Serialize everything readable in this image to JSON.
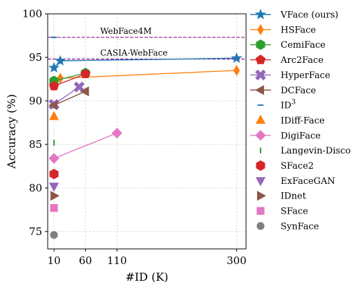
{
  "chart_data": {
    "type": "scatter",
    "xlabel": "#ID (K)",
    "ylabel": "Accuracy (%)",
    "xlim": [
      0,
      315
    ],
    "ylim": [
      73,
      100
    ],
    "xticks": [
      10,
      60,
      110,
      300
    ],
    "yticks": [
      75,
      80,
      85,
      90,
      95,
      100
    ],
    "grid": true,
    "legend_position": "outside-right",
    "reference_lines": [
      {
        "label": "WebFace4M",
        "y": 97.3,
        "color": "#800080"
      },
      {
        "label": "CASIA-WebFace",
        "y": 94.8,
        "color": "#800080"
      }
    ],
    "series": [
      {
        "name": "VFace (ours)",
        "legend_label": "VFace (ours)",
        "marker": "star",
        "color": "#1f77b4",
        "line": true,
        "points": [
          [
            10,
            93.8
          ],
          [
            20,
            94.6
          ],
          [
            300,
            94.9
          ]
        ]
      },
      {
        "name": "HSFace",
        "legend_label": "HSFace",
        "marker": "diamond-thin",
        "color": "#ff7f0e",
        "line": true,
        "points": [
          [
            10,
            92.0
          ],
          [
            20,
            92.6
          ],
          [
            300,
            93.5
          ]
        ]
      },
      {
        "name": "CemiFace",
        "legend_label": "CemiFace",
        "marker": "hexagon",
        "color": "#2ca02c",
        "line": true,
        "points": [
          [
            10,
            92.3
          ],
          [
            60,
            93.2
          ]
        ]
      },
      {
        "name": "Arc2Face",
        "legend_label": "Arc2Face",
        "marker": "pentagon",
        "color": "#d62728",
        "line": true,
        "points": [
          [
            10,
            91.7
          ],
          [
            60,
            93.1
          ]
        ]
      },
      {
        "name": "HyperFace",
        "legend_label": "HyperFace",
        "marker": "x",
        "color": "#9467bd",
        "line": true,
        "points": [
          [
            10,
            89.6
          ],
          [
            50,
            91.6
          ]
        ]
      },
      {
        "name": "DCFace",
        "legend_label": "DCFace",
        "marker": "triangle-left",
        "color": "#8c564b",
        "line": true,
        "points": [
          [
            10,
            89.5
          ],
          [
            60,
            91.1
          ]
        ]
      },
      {
        "name": "ID3",
        "legend_label": "ID",
        "legend_sup": "3",
        "marker": "hline",
        "color": "#1f77b4",
        "line": false,
        "points": [
          [
            10,
            97.3
          ]
        ]
      },
      {
        "name": "IDiff-Face",
        "legend_label": "IDiff-Face",
        "marker": "triangle-up",
        "color": "#ff7f0e",
        "line": false,
        "points": [
          [
            10,
            88.2
          ]
        ]
      },
      {
        "name": "DigiFace",
        "legend_label": "DigiFace",
        "marker": "diamond",
        "color": "#e377c2",
        "line": true,
        "points": [
          [
            10,
            83.4
          ],
          [
            110,
            86.3
          ]
        ]
      },
      {
        "name": "Langevin-Disco",
        "legend_label": "Langevin-Disco",
        "marker": "vline",
        "color": "#2ca02c",
        "line": false,
        "points": [
          [
            10,
            85.2
          ]
        ]
      },
      {
        "name": "SFace2",
        "legend_label": "SFace2",
        "marker": "hexagon",
        "color": "#d62728",
        "line": false,
        "points": [
          [
            10,
            81.6
          ]
        ]
      },
      {
        "name": "ExFaceGAN",
        "legend_label": "ExFaceGAN",
        "marker": "triangle-down",
        "color": "#9467bd",
        "line": false,
        "points": [
          [
            10,
            80.2
          ]
        ]
      },
      {
        "name": "IDnet",
        "legend_label": "IDnet",
        "marker": "triangle-right",
        "color": "#8c564b",
        "line": false,
        "points": [
          [
            10,
            79.1
          ]
        ]
      },
      {
        "name": "SFace",
        "legend_label": "SFace",
        "marker": "square",
        "color": "#e377c2",
        "line": false,
        "points": [
          [
            10,
            77.7
          ]
        ]
      },
      {
        "name": "SynFace",
        "legend_label": "SynFace",
        "marker": "circle",
        "color": "#7f7f7f",
        "line": false,
        "points": [
          [
            10,
            74.6
          ]
        ]
      }
    ]
  }
}
